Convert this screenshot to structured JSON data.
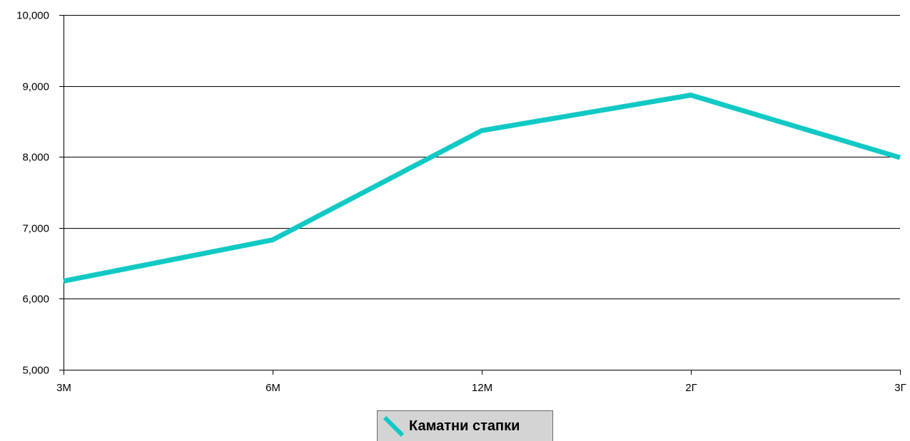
{
  "chart_data": {
    "type": "line",
    "categories": [
      "3М",
      "6М",
      "12М",
      "2Г",
      "3Г"
    ],
    "series": [
      {
        "name": "Каматни стапки",
        "values": [
          6250,
          6830,
          8370,
          8870,
          7990
        ],
        "color": "#11c9c4"
      }
    ],
    "ylim": [
      5000,
      10000
    ],
    "yticks": [
      "5,000",
      "6,000",
      "7,000",
      "8,000",
      "9,000",
      "10,000"
    ],
    "ytick_values": [
      5000,
      6000,
      7000,
      8000,
      9000,
      10000
    ],
    "grid": true,
    "legend_position": "bottom-center"
  }
}
